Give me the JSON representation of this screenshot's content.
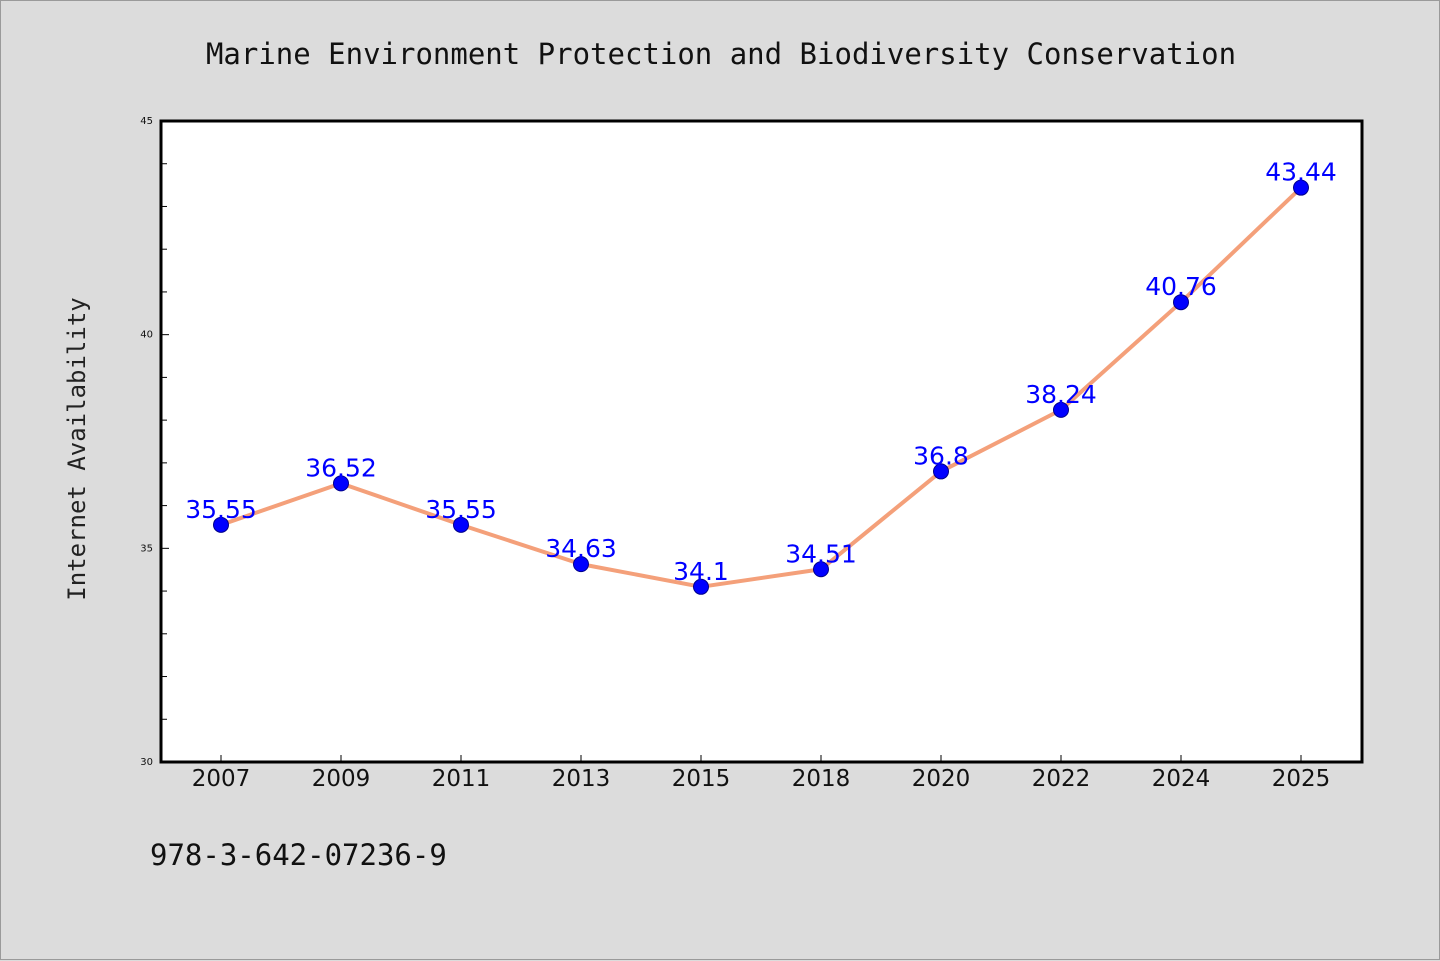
{
  "footer": {
    "code": "978-3-642-07236-9"
  },
  "chart_data": {
    "type": "line",
    "title": "Marine Environment Protection and Biodiversity Conservation",
    "xlabel": "",
    "ylabel": "Internet Availability",
    "categories": [
      "2007",
      "2009",
      "2011",
      "2013",
      "2015",
      "2018",
      "2020",
      "2022",
      "2024",
      "2025"
    ],
    "series": [
      {
        "values": [
          35.55,
          36.52,
          35.55,
          34.63,
          34.1,
          34.51,
          36.8,
          38.24,
          40.76,
          43.44
        ],
        "labels": [
          "35.55",
          "36.52",
          "35.55",
          "34.63",
          "34.1",
          "34.51",
          "36.8",
          "38.24",
          "40.76",
          "43.44"
        ]
      }
    ],
    "ylim": [
      30,
      45
    ],
    "y_ticks": [
      "30",
      "35",
      "40",
      "45"
    ],
    "grid": false,
    "line_color": "#f4a07a",
    "marker_color": "#0000ff",
    "label_color": "#0000ff",
    "background_color": "#dcdcdc",
    "plot_background": "#ffffff"
  }
}
